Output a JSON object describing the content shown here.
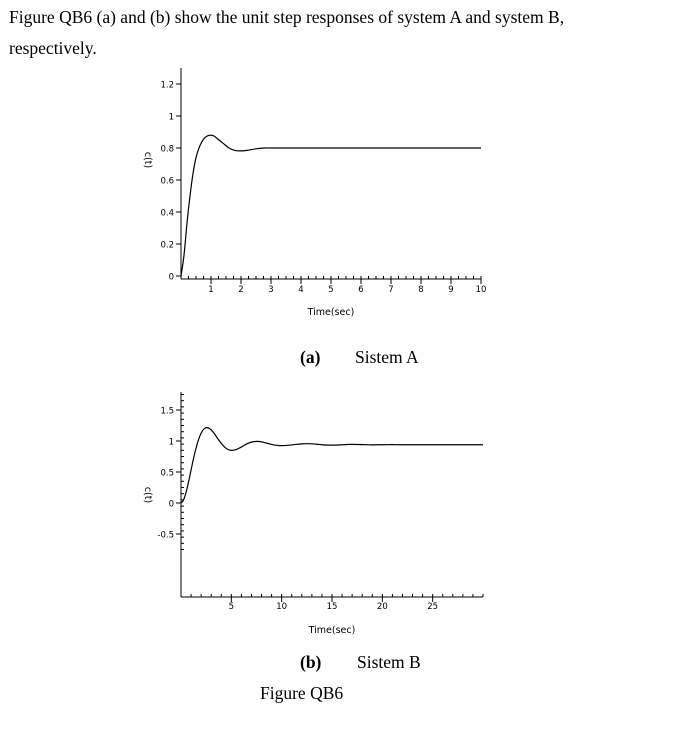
{
  "intro": {
    "line1": "Figure QB6 (a) and (b) show the unit step responses of system A and system B,",
    "line2": "respectively."
  },
  "caption_a": {
    "tag": "(a)",
    "label": "Sistem A"
  },
  "caption_b": {
    "tag": "(b)",
    "label": "Sistem B"
  },
  "figure_caption": "Figure QB6",
  "chart_data": [
    {
      "type": "line",
      "xlabel": "Time(sec)",
      "ylabel": "c(t)",
      "xlim": [
        0,
        10
      ],
      "ylim": [
        0,
        1.2
      ],
      "xticks": [
        1,
        2,
        3,
        4,
        5,
        6,
        7,
        8,
        9,
        10
      ],
      "yticks": [
        0,
        0.2,
        0.4,
        0.6,
        0.8,
        1,
        1.2
      ],
      "xtick_labels": [
        "1",
        "2",
        "3",
        "4",
        "5",
        "6",
        "7",
        "8",
        "9",
        "10"
      ],
      "ytick_labels": [
        "0",
        "0.2",
        "0.4",
        "0.6",
        "0.8",
        "1",
        "1.2"
      ],
      "grid": false,
      "series": [
        {
          "x": [
            0,
            0.1,
            0.2,
            0.3,
            0.4,
            0.5,
            0.6,
            0.7,
            0.8,
            0.9,
            1.0,
            1.1,
            1.2,
            1.4,
            1.6,
            1.8,
            2.0,
            2.2,
            2.5,
            2.8,
            3.2,
            4,
            6,
            8,
            10
          ],
          "y": [
            0,
            0.13,
            0.33,
            0.5,
            0.64,
            0.74,
            0.8,
            0.84,
            0.865,
            0.877,
            0.88,
            0.875,
            0.86,
            0.83,
            0.8,
            0.785,
            0.782,
            0.785,
            0.795,
            0.8,
            0.8,
            0.8,
            0.8,
            0.8,
            0.8
          ]
        }
      ]
    },
    {
      "type": "line",
      "xlabel": "Time(sec)",
      "ylabel": "c(t)",
      "xlim": [
        0,
        30
      ],
      "ylim": [
        -0.75,
        1.75
      ],
      "xticks": [
        5,
        10,
        15,
        20,
        25
      ],
      "yticks": [
        -0.5,
        0,
        0.5,
        1,
        1.5
      ],
      "xtick_labels": [
        "5",
        "10",
        "15",
        "20",
        "25"
      ],
      "ytick_labels": [
        "-0.5",
        "0",
        "0.5",
        "1",
        "1.5"
      ],
      "grid": false,
      "series": [
        {
          "x": [
            0,
            0.25,
            0.5,
            0.75,
            1.0,
            1.25,
            1.5,
            1.75,
            2.0,
            2.25,
            2.5,
            2.75,
            3.0,
            3.25,
            3.5,
            3.75,
            4.0,
            4.25,
            4.5,
            4.75,
            5.0,
            5.25,
            5.5,
            5.75,
            6.0,
            6.25,
            6.5,
            6.75,
            7.0,
            7.25,
            7.5,
            7.75,
            8.0,
            8.25,
            8.5,
            8.75,
            9.0,
            9.25,
            9.5,
            9.75,
            10.0,
            10.5,
            11.0,
            11.5,
            12.0,
            12.5,
            13.0,
            13.5,
            14.0,
            14.5,
            15.0,
            15.5,
            16.0,
            16.5,
            17.0,
            18.0,
            19.0,
            20.0,
            21.0,
            22.0,
            24.0,
            26.0,
            28.0,
            30.0
          ],
          "y": [
            0,
            0.048,
            0.171,
            0.341,
            0.532,
            0.721,
            0.889,
            1.026,
            1.127,
            1.189,
            1.215,
            1.209,
            1.179,
            1.132,
            1.075,
            1.016,
            0.961,
            0.915,
            0.88,
            0.858,
            0.849,
            0.852,
            0.863,
            0.882,
            0.904,
            0.928,
            0.95,
            0.968,
            0.982,
            0.99,
            0.994,
            0.992,
            0.986,
            0.977,
            0.966,
            0.955,
            0.945,
            0.936,
            0.93,
            0.926,
            0.925,
            0.928,
            0.937,
            0.947,
            0.954,
            0.957,
            0.955,
            0.948,
            0.94,
            0.935,
            0.933,
            0.935,
            0.94,
            0.944,
            0.946,
            0.942,
            0.938,
            0.94,
            0.941,
            0.94,
            0.94,
            0.94,
            0.94,
            0.94
          ]
        }
      ]
    }
  ]
}
